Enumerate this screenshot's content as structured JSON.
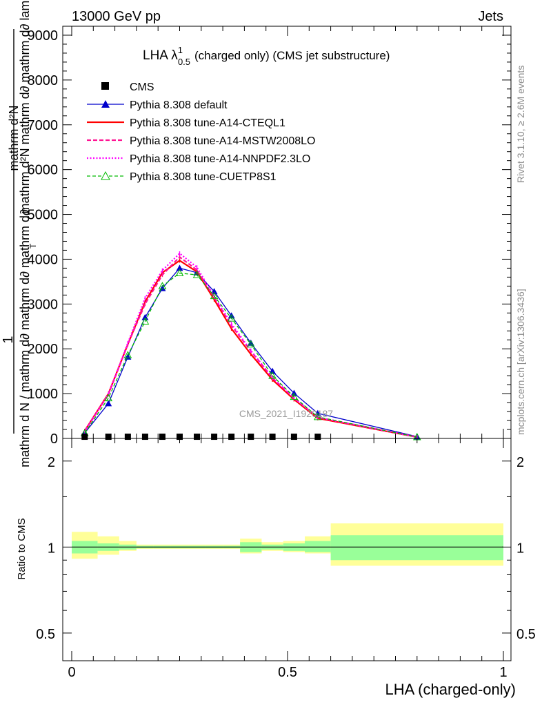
{
  "header": {
    "left": "13000 GeV pp",
    "right": "Jets"
  },
  "side_labels": {
    "rivet": "Rivet 3.1.10, ≥ 2.6M events",
    "mcplots": "mcplots.cern.ch [arXiv:1306.3436]"
  },
  "watermark": "CMS_2021_I1920187",
  "colors": {
    "cms": "#000000",
    "default": "#0000cc",
    "cteql1": "#ff0000",
    "mstw": "#ff1493",
    "nnpdf": "#ff00ff",
    "cuetp8s1": "#00bb00",
    "band_inner": "#99ff99",
    "band_outer": "#ffff99"
  },
  "chart_data": [
    {
      "type": "line",
      "title_main": "LHA λ",
      "title_sup": "1",
      "title_sub": "0.5",
      "title_rest": "(charged only) (CMS jet substructure)",
      "ylabel_numerator": "mathrm d²N",
      "ylabel_numerator_extra": "mathrm d²N  mathrm d∂ mathrm d∂ lambda",
      "ylabel_prefix": "1",
      "ylabel_denominator": "mathrm d N / mathrm d∂ mathrm d∂ mathrm d∂",
      "ylabel_sub": "T",
      "ylim": [
        0,
        9200
      ],
      "xlim": [
        0,
        1
      ],
      "y_ticks": [
        0,
        1000,
        2000,
        3000,
        4000,
        5000,
        6000,
        7000,
        8000,
        9000
      ],
      "y_tick_labels": [
        "0",
        "1000",
        "2000",
        "3000",
        "4000",
        "5000",
        "6000",
        "7000",
        "8000",
        "9000"
      ],
      "legend_position": "top-left",
      "series": [
        {
          "name": "CMS",
          "key": "cms",
          "x": [
            0.03,
            0.085,
            0.13,
            0.17,
            0.21,
            0.25,
            0.29,
            0.33,
            0.37,
            0.415,
            0.465,
            0.515,
            0.57
          ],
          "values": [
            30,
            30,
            30,
            30,
            30,
            30,
            30,
            30,
            30,
            30,
            30,
            30,
            30
          ]
        },
        {
          "name": "Pythia 8.308 default",
          "key": "default",
          "x": [
            0.03,
            0.085,
            0.13,
            0.17,
            0.21,
            0.25,
            0.29,
            0.33,
            0.37,
            0.415,
            0.465,
            0.515,
            0.57,
            0.8
          ],
          "values": [
            120,
            780,
            1820,
            2700,
            3350,
            3800,
            3700,
            3280,
            2740,
            2130,
            1500,
            1010,
            560,
            40
          ]
        },
        {
          "name": "Pythia 8.308 tune-A14-CTEQL1",
          "key": "cteql1",
          "x": [
            0.03,
            0.085,
            0.13,
            0.17,
            0.21,
            0.25,
            0.29,
            0.33,
            0.37,
            0.415,
            0.465,
            0.515,
            0.57,
            0.8
          ],
          "values": [
            170,
            1000,
            2100,
            3050,
            3700,
            3970,
            3720,
            3100,
            2450,
            1880,
            1310,
            870,
            450,
            30
          ]
        },
        {
          "name": "Pythia 8.308 tune-A14-MSTW2008LO",
          "key": "mstw",
          "x": [
            0.03,
            0.085,
            0.13,
            0.17,
            0.21,
            0.25,
            0.29,
            0.33,
            0.37,
            0.415,
            0.465,
            0.515,
            0.57,
            0.8
          ],
          "values": [
            160,
            980,
            2100,
            3000,
            3650,
            4050,
            3760,
            3150,
            2520,
            1950,
            1350,
            900,
            470,
            30
          ]
        },
        {
          "name": "Pythia 8.308 tune-A14-NNPDF2.3LO",
          "key": "nnpdf",
          "x": [
            0.03,
            0.085,
            0.13,
            0.17,
            0.21,
            0.25,
            0.29,
            0.33,
            0.37,
            0.415,
            0.465,
            0.515,
            0.57,
            0.8
          ],
          "values": [
            160,
            990,
            2130,
            3130,
            3750,
            4130,
            3820,
            3170,
            2560,
            1960,
            1360,
            900,
            470,
            30
          ]
        },
        {
          "name": "Pythia 8.308 tune-CUETP8S1",
          "key": "cuetp8s1",
          "x": [
            0.03,
            0.085,
            0.13,
            0.17,
            0.21,
            0.25,
            0.29,
            0.33,
            0.37,
            0.415,
            0.465,
            0.515,
            0.57,
            0.8
          ],
          "values": [
            120,
            900,
            1860,
            2610,
            3400,
            3690,
            3650,
            3180,
            2680,
            2100,
            1400,
            930,
            480,
            30
          ]
        }
      ]
    },
    {
      "type": "area",
      "ylabel": "Ratio to CMS",
      "xlabel": "LHA (charged-only)",
      "xlim": [
        0,
        1
      ],
      "ylim": [
        0.4,
        2.4
      ],
      "log_y": true,
      "y_ticks": [
        0.5,
        1,
        2
      ],
      "y_tick_labels": [
        "0.5",
        "1",
        "2"
      ],
      "x_ticks": [
        0,
        0.5,
        1
      ],
      "x_tick_labels": [
        "0",
        "0.5",
        "1"
      ],
      "bins": [
        0,
        0.06,
        0.11,
        0.15,
        0.19,
        0.23,
        0.27,
        0.31,
        0.35,
        0.39,
        0.44,
        0.49,
        0.54,
        0.6,
        1.0
      ],
      "inner_low": [
        0.95,
        0.97,
        0.98,
        0.99,
        0.99,
        0.99,
        0.99,
        0.99,
        0.99,
        0.96,
        0.98,
        0.97,
        0.96,
        0.9
      ],
      "inner_high": [
        1.05,
        1.03,
        1.02,
        1.01,
        1.01,
        1.01,
        1.01,
        1.01,
        1.01,
        1.04,
        1.02,
        1.03,
        1.05,
        1.1
      ],
      "outer_low": [
        0.91,
        0.94,
        0.97,
        0.985,
        0.985,
        0.985,
        0.985,
        0.985,
        0.985,
        0.95,
        0.97,
        0.96,
        0.95,
        0.86
      ],
      "outer_high": [
        1.13,
        1.09,
        1.05,
        1.02,
        1.02,
        1.02,
        1.02,
        1.02,
        1.02,
        1.07,
        1.04,
        1.05,
        1.09,
        1.21
      ]
    }
  ]
}
